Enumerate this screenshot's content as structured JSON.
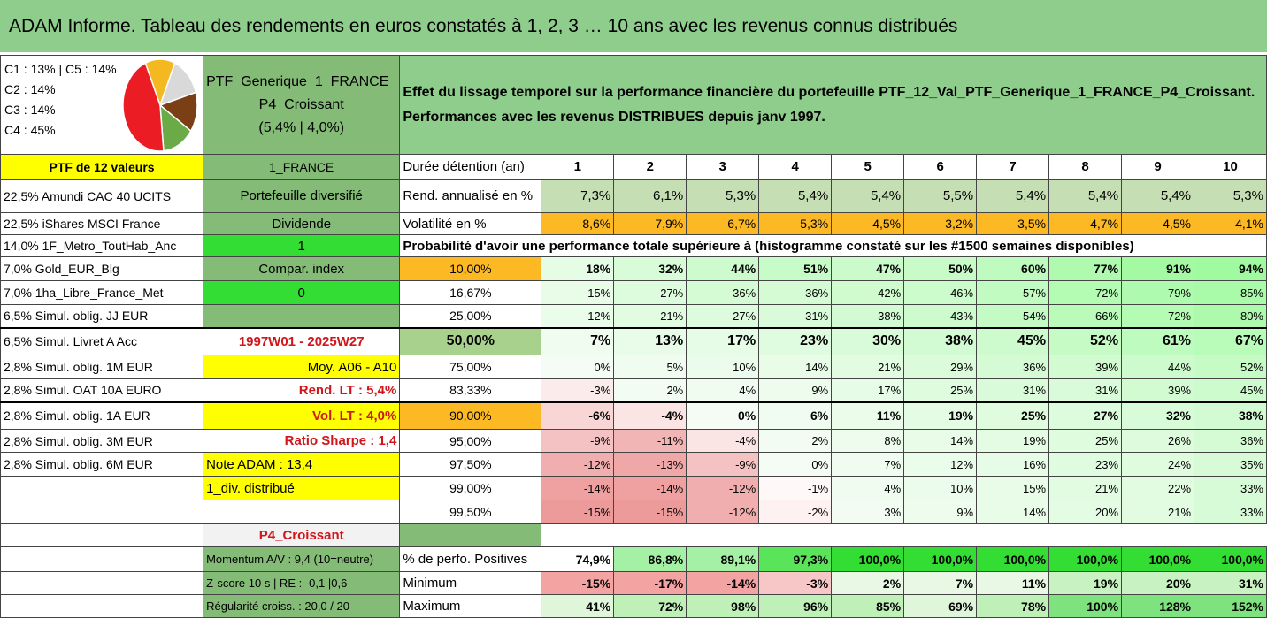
{
  "title": "ADAM Informe. Tableau des rendements en euros constatés à 1, 2, 3 … 10 ans avec les revenus connus distribués",
  "pie": {
    "legend": [
      "C1 : 13% | C5 : 14%",
      "C2 : 14%",
      "C3 : 14%",
      "C4 : 45%"
    ],
    "slices": [
      {
        "value": 13,
        "color": "#f4b821"
      },
      {
        "value": 14,
        "color": "#d9d9d9"
      },
      {
        "value": 14,
        "color": "#7b3f16"
      },
      {
        "value": 14,
        "color": "#6aab48"
      },
      {
        "value": 45,
        "color": "#ec1c24"
      }
    ]
  },
  "portfolio": {
    "name_line1": "PTF_Generique_1_FRANCE_",
    "name_line2": "P4_Croissant",
    "name_line3": "(5,4% | 4,0%)",
    "description_line1": "Effet du lissage temporel sur la performance financière du portefeuille PTF_12_Val_PTF_Generique_1_FRANCE_P4_Croissant.",
    "description_line2": "Performances avec les revenus DISTRIBUES depuis janv 1997."
  },
  "left_header": "PTF de 12 valeurs",
  "holdings": [
    "22,5% Amundi CAC 40 UCITS",
    "22,5% iShares MSCI France",
    "14,0% 1F_Metro_ToutHab_Anc",
    "7,0% Gold_EUR_Blg",
    "7,0% 1ha_Libre_France_Met",
    "6,5% Simul. oblig. JJ EUR",
    "6,5% Simul. Livret A Acc",
    "2,8% Simul. oblig. 1M EUR",
    "2,8% Simul. OAT 10A EURO",
    "2,8% Simul. oblig. 1A EUR",
    "2,8% Simul. oblig. 3M EUR",
    "2,8% Simul. oblig. 6M EUR"
  ],
  "side": {
    "country": "1_FRANCE",
    "diversified": "Portefeuille diversifié",
    "dividend": "Dividende",
    "val1": "1",
    "compar": "Compar. index",
    "val0": "0",
    "period": "1997W01 - 2025W27",
    "moy": "Moy. A06 - A10",
    "rend": "Rend. LT : 5,4%",
    "vol": "Vol. LT : 4,0%",
    "sharpe": "Ratio Sharpe : 1,4",
    "note": "Note ADAM : 13,4",
    "div": "1_div. distribué",
    "profile": "P4_Croissant",
    "momentum": "Momentum A/V : 9,4 (10=neutre)",
    "zscore": "Z-score 10 s | RE : -0,1 |0,6",
    "regularite": "Régularité croiss. : 20,0 / 20"
  },
  "labels": {
    "duree": "Durée détention (an)",
    "rend": "Rend. annualisé en %",
    "vol": "Volatilité en %",
    "proba": "Probabilité d'avoir une performance totale supérieure à (histogramme constaté sur les #1500 semaines disponibles)",
    "positives": "% de perfo. Positives",
    "minimum": "Minimum",
    "maximum": "Maximum"
  },
  "years": [
    "1",
    "2",
    "3",
    "4",
    "5",
    "6",
    "7",
    "8",
    "9",
    "10"
  ],
  "rend": [
    "7,3%",
    "6,1%",
    "5,3%",
    "5,4%",
    "5,4%",
    "5,5%",
    "5,4%",
    "5,4%",
    "5,4%",
    "5,3%"
  ],
  "vol": [
    "8,6%",
    "7,9%",
    "6,7%",
    "5,3%",
    "4,5%",
    "3,2%",
    "3,5%",
    "4,7%",
    "4,5%",
    "4,1%"
  ],
  "proba": [
    {
      "threshold": "10,00%",
      "values": [
        "18%",
        "32%",
        "44%",
        "51%",
        "47%",
        "50%",
        "60%",
        "77%",
        "91%",
        "94%"
      ]
    },
    {
      "threshold": "16,67%",
      "values": [
        "15%",
        "27%",
        "36%",
        "36%",
        "42%",
        "46%",
        "57%",
        "72%",
        "79%",
        "85%"
      ]
    },
    {
      "threshold": "25,00%",
      "values": [
        "12%",
        "21%",
        "27%",
        "31%",
        "38%",
        "43%",
        "54%",
        "66%",
        "72%",
        "80%"
      ]
    },
    {
      "threshold": "50,00%",
      "values": [
        "7%",
        "13%",
        "17%",
        "23%",
        "30%",
        "38%",
        "45%",
        "52%",
        "61%",
        "67%"
      ]
    },
    {
      "threshold": "75,00%",
      "values": [
        "0%",
        "5%",
        "10%",
        "14%",
        "21%",
        "29%",
        "36%",
        "39%",
        "44%",
        "52%"
      ]
    },
    {
      "threshold": "83,33%",
      "values": [
        "-3%",
        "2%",
        "4%",
        "9%",
        "17%",
        "25%",
        "31%",
        "31%",
        "39%",
        "45%"
      ]
    },
    {
      "threshold": "90,00%",
      "values": [
        "-6%",
        "-4%",
        "0%",
        "6%",
        "11%",
        "19%",
        "25%",
        "27%",
        "32%",
        "38%"
      ]
    },
    {
      "threshold": "95,00%",
      "values": [
        "-9%",
        "-11%",
        "-4%",
        "2%",
        "8%",
        "14%",
        "19%",
        "25%",
        "26%",
        "36%"
      ]
    },
    {
      "threshold": "97,50%",
      "values": [
        "-12%",
        "-13%",
        "-9%",
        "0%",
        "7%",
        "12%",
        "16%",
        "23%",
        "24%",
        "35%"
      ]
    },
    {
      "threshold": "99,00%",
      "values": [
        "-14%",
        "-14%",
        "-12%",
        "-1%",
        "4%",
        "10%",
        "15%",
        "21%",
        "22%",
        "33%"
      ]
    },
    {
      "threshold": "99,50%",
      "values": [
        "-15%",
        "-15%",
        "-12%",
        "-2%",
        "3%",
        "9%",
        "14%",
        "20%",
        "21%",
        "33%"
      ]
    }
  ],
  "positives": [
    "74,9%",
    "86,8%",
    "89,1%",
    "97,3%",
    "100,0%",
    "100,0%",
    "100,0%",
    "100,0%",
    "100,0%",
    "100,0%"
  ],
  "minimum": [
    "-15%",
    "-17%",
    "-14%",
    "-3%",
    "2%",
    "7%",
    "11%",
    "19%",
    "20%",
    "31%"
  ],
  "maximum": [
    "41%",
    "72%",
    "98%",
    "96%",
    "85%",
    "69%",
    "78%",
    "100%",
    "128%",
    "152%"
  ]
}
